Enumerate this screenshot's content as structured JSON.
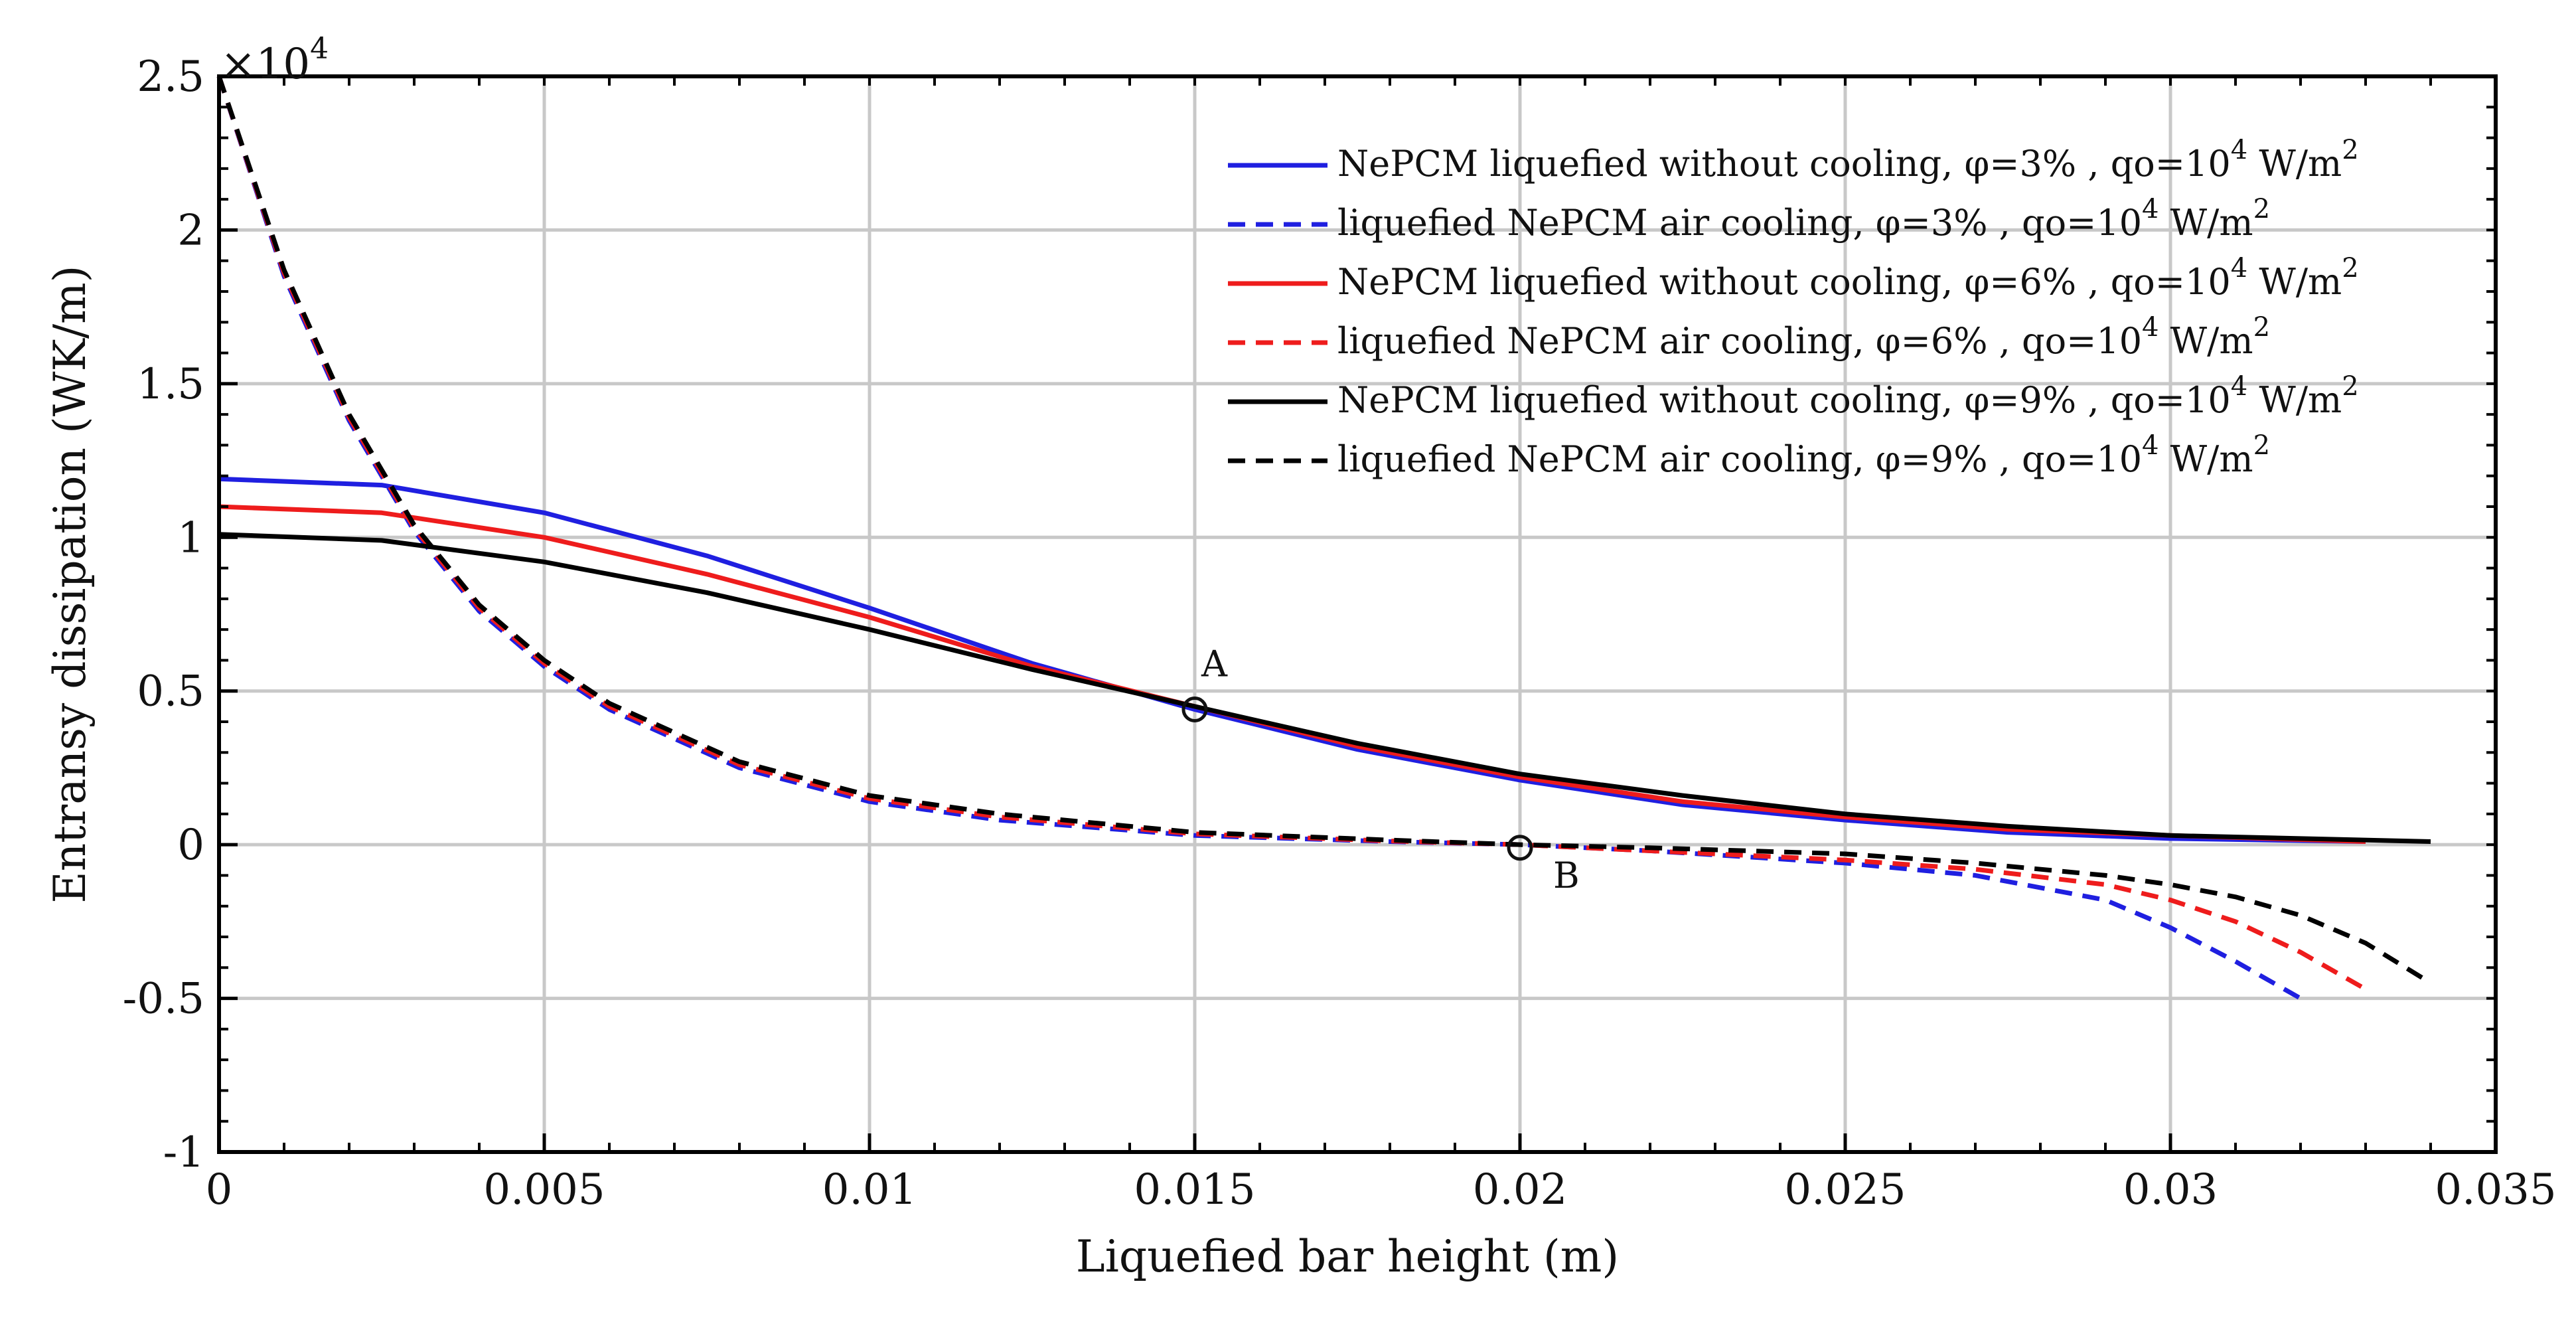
{
  "chart_data": {
    "type": "line",
    "title": "",
    "xlabel": "Liquefied bar height (m)",
    "ylabel": "Entransy dissipation (WK/m)",
    "y_multiplier": "×10",
    "y_multiplier_exp": "4",
    "xlim": [
      0,
      0.035
    ],
    "ylim": [
      -1,
      2.5
    ],
    "grid": true,
    "legend_position": "top-right",
    "x_ticks": [
      0,
      0.005,
      0.01,
      0.015,
      0.02,
      0.025,
      0.03,
      0.035
    ],
    "x_tick_labels": [
      "0",
      "0.005",
      "0.01",
      "0.015",
      "0.02",
      "0.025",
      "0.03",
      "0.035"
    ],
    "y_ticks": [
      -1,
      -0.5,
      0,
      0.5,
      1,
      1.5,
      2,
      2.5
    ],
    "y_tick_labels": [
      "-1",
      "-0.5",
      "0",
      "0.5",
      "1",
      "1.5",
      "2",
      "2.5"
    ],
    "series": [
      {
        "name": "NePCM liquefied without cooling, φ=3% , qo=10^4 W/m^2",
        "legend_main": "NePCM liquefied without cooling, φ=3% , qo=10",
        "legend_exp": "4",
        "legend_unit": " W/m",
        "legend_unit_exp": "2",
        "color": "#1f1fe0",
        "dash": "solid",
        "x": [
          0,
          0.0025,
          0.005,
          0.0075,
          0.01,
          0.0125,
          0.015,
          0.0175,
          0.02,
          0.0225,
          0.025,
          0.0275,
          0.03,
          0.033
        ],
        "y": [
          1.19,
          1.17,
          1.08,
          0.94,
          0.77,
          0.59,
          0.44,
          0.31,
          0.21,
          0.13,
          0.08,
          0.04,
          0.02,
          0.01
        ]
      },
      {
        "name": "liquefied NePCM air cooling, φ=3% , qo=10^4 W/m^2",
        "legend_main": "liquefied NePCM air cooling, φ=3% , qo=10",
        "legend_exp": "4",
        "legend_unit": " W/m",
        "legend_unit_exp": "2",
        "color": "#1f1fe0",
        "dash": "dashed",
        "x": [
          0,
          0.001,
          0.002,
          0.003,
          0.004,
          0.005,
          0.006,
          0.008,
          0.01,
          0.012,
          0.015,
          0.018,
          0.02,
          0.022,
          0.025,
          0.027,
          0.029,
          0.03,
          0.031,
          0.032
        ],
        "y": [
          2.5,
          1.85,
          1.38,
          1.02,
          0.76,
          0.58,
          0.44,
          0.25,
          0.14,
          0.08,
          0.03,
          0.01,
          0.0,
          -0.02,
          -0.06,
          -0.1,
          -0.18,
          -0.27,
          -0.38,
          -0.5
        ]
      },
      {
        "name": "NePCM liquefied without cooling, φ=6% , qo=10^4 W/m^2",
        "legend_main": "NePCM liquefied without cooling, φ=6% , qo=10",
        "legend_exp": "4",
        "legend_unit": " W/m",
        "legend_unit_exp": "2",
        "color": "#ee1c1c",
        "dash": "solid",
        "x": [
          0,
          0.0025,
          0.005,
          0.0075,
          0.01,
          0.0125,
          0.015,
          0.0175,
          0.02,
          0.0225,
          0.025,
          0.0275,
          0.03,
          0.033
        ],
        "y": [
          1.1,
          1.08,
          1.0,
          0.88,
          0.74,
          0.58,
          0.45,
          0.32,
          0.22,
          0.14,
          0.09,
          0.05,
          0.03,
          0.01
        ]
      },
      {
        "name": "liquefied NePCM air cooling, φ=6% , qo=10^4 W/m^2",
        "legend_main": "liquefied NePCM air cooling, φ=6% , qo=10",
        "legend_exp": "4",
        "legend_unit": " W/m",
        "legend_unit_exp": "2",
        "color": "#ee1c1c",
        "dash": "dashed",
        "x": [
          0,
          0.001,
          0.002,
          0.003,
          0.004,
          0.005,
          0.006,
          0.008,
          0.01,
          0.012,
          0.015,
          0.018,
          0.02,
          0.022,
          0.025,
          0.027,
          0.029,
          0.03,
          0.031,
          0.032,
          0.033
        ],
        "y": [
          2.5,
          1.86,
          1.39,
          1.03,
          0.77,
          0.59,
          0.45,
          0.26,
          0.15,
          0.09,
          0.035,
          0.012,
          0.0,
          -0.02,
          -0.05,
          -0.08,
          -0.13,
          -0.18,
          -0.25,
          -0.35,
          -0.47
        ]
      },
      {
        "name": "NePCM liquefied without cooling, φ=9% , qo=10^4 W/m^2",
        "legend_main": "NePCM liquefied without cooling, φ=9% , qo=10",
        "legend_exp": "4",
        "legend_unit": " W/m",
        "legend_unit_exp": "2",
        "color": "#000000",
        "dash": "solid",
        "x": [
          0,
          0.0025,
          0.005,
          0.0075,
          0.01,
          0.0125,
          0.015,
          0.0175,
          0.02,
          0.0225,
          0.025,
          0.0275,
          0.03,
          0.034
        ],
        "y": [
          1.01,
          0.99,
          0.92,
          0.82,
          0.7,
          0.57,
          0.45,
          0.33,
          0.23,
          0.16,
          0.1,
          0.06,
          0.03,
          0.01
        ]
      },
      {
        "name": "liquefied NePCM air cooling, φ=9% , qo=10^4 W/m^2",
        "legend_main": "liquefied NePCM air cooling, φ=9% , qo=10",
        "legend_exp": "4",
        "legend_unit": " W/m",
        "legend_unit_exp": "2",
        "color": "#000000",
        "dash": "dashed",
        "x": [
          0,
          0.001,
          0.002,
          0.003,
          0.004,
          0.005,
          0.006,
          0.008,
          0.01,
          0.012,
          0.015,
          0.018,
          0.02,
          0.022,
          0.025,
          0.027,
          0.029,
          0.03,
          0.031,
          0.032,
          0.033,
          0.034
        ],
        "y": [
          2.5,
          1.87,
          1.4,
          1.04,
          0.78,
          0.6,
          0.46,
          0.27,
          0.16,
          0.1,
          0.04,
          0.015,
          0.0,
          -0.01,
          -0.03,
          -0.06,
          -0.1,
          -0.13,
          -0.17,
          -0.23,
          -0.32,
          -0.45
        ]
      }
    ],
    "annotations": [
      {
        "label": "A",
        "x": 0.015,
        "y": 0.44
      },
      {
        "label": "B",
        "x": 0.02,
        "y": -0.01
      }
    ]
  }
}
